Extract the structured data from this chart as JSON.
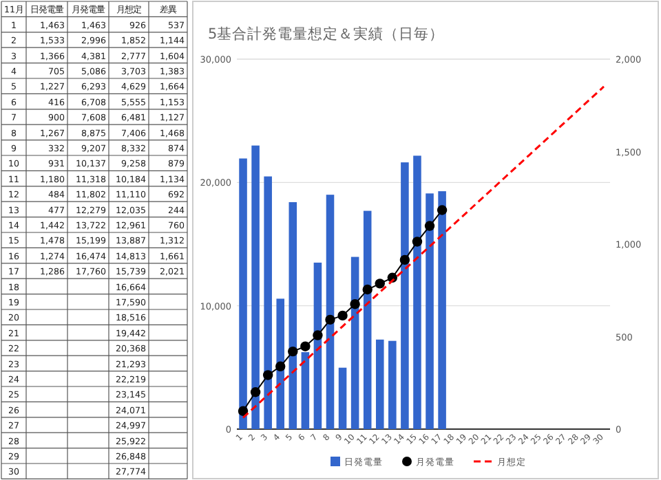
{
  "chart_data": {
    "type": "bar",
    "title": "5基合計発電量想定＆実績（日毎）",
    "categories": [
      "1",
      "2",
      "3",
      "4",
      "5",
      "6",
      "7",
      "8",
      "9",
      "10",
      "11",
      "12",
      "13",
      "14",
      "15",
      "16",
      "17",
      "18",
      "19",
      "20",
      "21",
      "22",
      "23",
      "24",
      "25",
      "26",
      "27",
      "28",
      "29",
      "30"
    ],
    "series": [
      {
        "name": "日発電量",
        "type": "bar",
        "axis": "y2",
        "color": "#3366cc",
        "values": [
          1463,
          1533,
          1366,
          705,
          1227,
          416,
          900,
          1267,
          332,
          931,
          1180,
          484,
          477,
          1442,
          1478,
          1274,
          1286,
          null,
          null,
          null,
          null,
          null,
          null,
          null,
          null,
          null,
          null,
          null,
          null,
          null
        ]
      },
      {
        "name": "月発電量",
        "type": "line",
        "color": "#000000",
        "marker": "circle",
        "values": [
          1463,
          2996,
          4381,
          5086,
          6293,
          6708,
          7608,
          8875,
          9207,
          10137,
          11318,
          11802,
          12279,
          13722,
          15199,
          16474,
          17760,
          null,
          null,
          null,
          null,
          null,
          null,
          null,
          null,
          null,
          null,
          null,
          null,
          null
        ]
      },
      {
        "name": "月想定",
        "type": "line",
        "color": "#ff0000",
        "line_style": "dashed",
        "values": [
          926,
          1852,
          2777,
          3703,
          4629,
          5555,
          6481,
          7406,
          8332,
          9258,
          10184,
          11110,
          12035,
          12961,
          13887,
          14813,
          15739,
          16664,
          17590,
          18516,
          19442,
          20368,
          21293,
          22219,
          23145,
          24071,
          24997,
          25922,
          26848,
          27774
        ]
      }
    ],
    "ylim": [
      0,
      30000
    ],
    "yticks": [
      {
        "value": 0,
        "label": "0"
      },
      {
        "value": 10000,
        "label": "10,000"
      },
      {
        "value": 20000,
        "label": "20,000"
      },
      {
        "value": 30000,
        "label": "30,000"
      }
    ],
    "y2lim": [
      0,
      2000
    ],
    "y2ticks": [
      {
        "value": 0,
        "label": "0"
      },
      {
        "value": 500,
        "label": "500"
      },
      {
        "value": 1000,
        "label": "1,000"
      },
      {
        "value": 1500,
        "label": "1,500"
      },
      {
        "value": 2000,
        "label": "2,000"
      }
    ],
    "grid": "y",
    "legend": "bottom",
    "annotations": [
      "11月",
      "差異",
      "1,463",
      "1,533",
      "1,366",
      "705",
      "1,227",
      "416",
      "900",
      "1,267",
      "332",
      "931",
      "1,180",
      "484",
      "477",
      "1,442",
      "1,478",
      "1,274",
      "1,286",
      "1,463",
      "2,996",
      "4,381",
      "5,086",
      "6,293",
      "6,708",
      "7,608",
      "8,875",
      "9,207",
      "10,137",
      "11,318",
      "11,802",
      "12,279",
      "13,722",
      "15,199",
      "16,474",
      "17,760",
      "926",
      "1,852",
      "2,777",
      "3,703",
      "4,629",
      "5,555",
      "6,481",
      "7,406",
      "8,332",
      "9,258",
      "10,184",
      "11,110",
      "12,035",
      "12,961",
      "13,887",
      "14,813",
      "15,739",
      "16,664",
      "17,590",
      "18,516",
      "19,442",
      "20,368",
      "21,293",
      "22,219",
      "23,145",
      "24,071",
      "24,997",
      "25,922",
      "26,848",
      "27,774",
      "537",
      "1,144",
      "1,604",
      "1,383",
      "1,664",
      "1,153",
      "1,127",
      "1,468",
      "874",
      "879",
      "1,134",
      "692",
      "244",
      "760",
      "1,312",
      "1,661",
      "2,021"
    ]
  }
}
